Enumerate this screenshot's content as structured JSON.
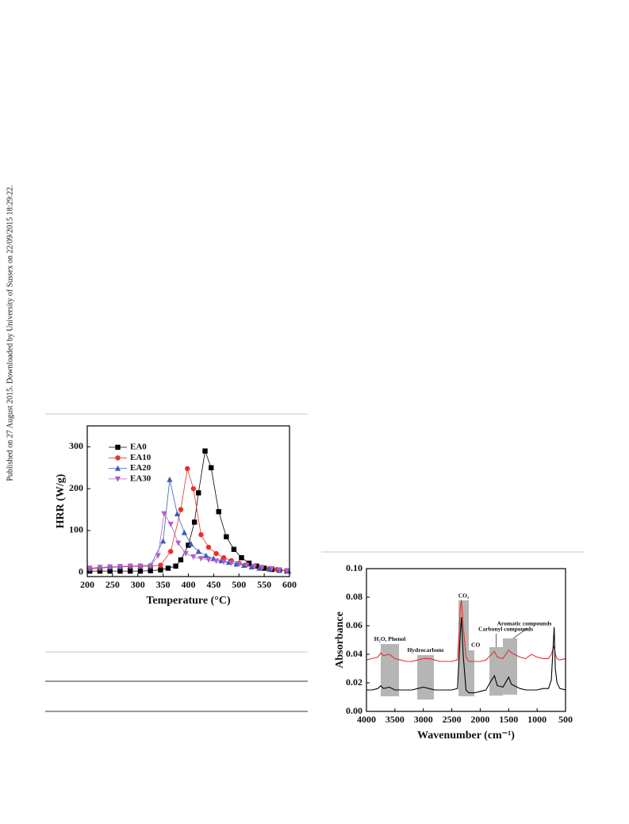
{
  "side_note": "Published on 27 August 2015. Downloaded by University of Sussex on 22/09/2015 18:29:22.",
  "chart_data": [
    {
      "type": "line",
      "x_label": "Temperature (°C)",
      "y_label": "HRR (W/g)",
      "xlim": [
        200,
        600
      ],
      "ylim": [
        -10,
        350
      ],
      "xticks": [
        200,
        250,
        300,
        350,
        400,
        450,
        500,
        550,
        600
      ],
      "yticks": [
        0,
        100,
        200,
        300
      ],
      "legend": "upper left",
      "series": [
        {
          "name": "EA0",
          "color": "#000000",
          "marker": "square",
          "x": [
            205,
            225,
            245,
            265,
            285,
            305,
            325,
            345,
            360,
            375,
            385,
            400,
            412,
            420,
            433,
            445,
            460,
            475,
            490,
            505,
            520,
            535,
            550,
            565,
            580,
            595
          ],
          "values": [
            3,
            3,
            3,
            3,
            3,
            3,
            4,
            6,
            10,
            15,
            30,
            65,
            120,
            190,
            290,
            250,
            145,
            85,
            55,
            35,
            22,
            15,
            10,
            7,
            5,
            3
          ]
        },
        {
          "name": "EA10",
          "color": "#e8302a",
          "marker": "circle",
          "x": [
            205,
            225,
            245,
            265,
            285,
            305,
            325,
            345,
            365,
            385,
            398,
            410,
            425,
            440,
            455,
            470,
            485,
            500,
            515,
            530,
            545,
            560,
            575,
            595
          ],
          "values": [
            8,
            10,
            12,
            13,
            14,
            15,
            15,
            17,
            50,
            150,
            248,
            200,
            90,
            60,
            45,
            35,
            28,
            22,
            18,
            15,
            12,
            9,
            7,
            4
          ]
        },
        {
          "name": "EA20",
          "color": "#3a5fb0",
          "marker": "triangle-up",
          "x": [
            205,
            225,
            245,
            265,
            285,
            305,
            325,
            350,
            363,
            378,
            392,
            405,
            420,
            435,
            450,
            465,
            480,
            495,
            510,
            525,
            540,
            560,
            580,
            598
          ],
          "values": [
            10,
            12,
            13,
            14,
            15,
            16,
            17,
            75,
            222,
            140,
            95,
            68,
            50,
            40,
            33,
            28,
            24,
            20,
            17,
            13,
            10,
            8,
            5,
            3
          ]
        },
        {
          "name": "EA30",
          "color": "#b05fc8",
          "marker": "triangle-down",
          "x": [
            205,
            225,
            245,
            265,
            285,
            305,
            325,
            340,
            352,
            365,
            380,
            395,
            410,
            425,
            440,
            455,
            470,
            485,
            500,
            515,
            530,
            545,
            565,
            580,
            595
          ],
          "values": [
            10,
            12,
            13,
            14,
            15,
            15,
            15,
            40,
            140,
            115,
            70,
            45,
            37,
            33,
            30,
            27,
            25,
            22,
            20,
            17,
            14,
            12,
            9,
            6,
            4
          ]
        }
      ]
    },
    {
      "type": "line",
      "x_label": "Wavenumber (cm⁻¹)",
      "y_label": "Absorbance",
      "xlim": [
        4000,
        500
      ],
      "ylim": [
        0,
        0.1
      ],
      "xticks": [
        4000,
        3500,
        3000,
        2500,
        2000,
        1500,
        1000,
        500
      ],
      "yticks": [
        {
          "value": 0,
          "label": "0.00"
        },
        {
          "value": 0.02,
          "label": "0.02"
        },
        {
          "value": 0.04,
          "label": "0.04"
        },
        {
          "value": 0.06,
          "label": "0.06"
        },
        {
          "value": 0.08,
          "label": "0.08"
        },
        {
          "value": 0.1,
          "label": "0.10"
        }
      ],
      "regions": [
        {
          "label": "H₂O, Phenol",
          "x": [
            3749,
            3428
          ],
          "y": [
            0.0106,
            0.0472
          ]
        },
        {
          "label": "Hydrocarbons",
          "x": [
            3107,
            2815
          ],
          "y": [
            0.0083,
            0.0394
          ]
        },
        {
          "label": "CO₂",
          "x": [
            2382,
            2201
          ],
          "y": [
            0.0106,
            0.0778
          ]
        },
        {
          "label": "CO",
          "x": [
            2201,
            2103
          ],
          "y": [
            0.0106,
            0.0428
          ]
        },
        {
          "label": "Carbonyl compounds",
          "x": [
            1838,
            1601
          ],
          "y": [
            0.011,
            0.045
          ]
        },
        {
          "label": "Aromatic compounds",
          "x": [
            1601,
            1350
          ],
          "y": [
            0.0117,
            0.0511
          ]
        }
      ],
      "x": [
        4000,
        3900,
        3800,
        3750,
        3700,
        3600,
        3500,
        3400,
        3300,
        3200,
        3100,
        3000,
        2900,
        2800,
        2700,
        2600,
        2500,
        2400,
        2350,
        2330,
        2300,
        2250,
        2200,
        2100,
        2000,
        1900,
        1800,
        1750,
        1700,
        1600,
        1500,
        1450,
        1400,
        1300,
        1200,
        1100,
        1000,
        900,
        800,
        750,
        700,
        680,
        650,
        600,
        500
      ],
      "series": [
        {
          "color": "#e8302a",
          "values": [
            0.036,
            0.037,
            0.038,
            0.041,
            0.039,
            0.04,
            0.037,
            0.036,
            0.035,
            0.035,
            0.036,
            0.037,
            0.037,
            0.036,
            0.035,
            0.035,
            0.035,
            0.036,
            0.072,
            0.078,
            0.06,
            0.038,
            0.035,
            0.035,
            0.035,
            0.036,
            0.04,
            0.042,
            0.038,
            0.037,
            0.043,
            0.041,
            0.04,
            0.038,
            0.037,
            0.04,
            0.038,
            0.037,
            0.037,
            0.04,
            0.046,
            0.04,
            0.037,
            0.036,
            0.037
          ]
        },
        {
          "color": "#000000",
          "values": [
            0.015,
            0.015,
            0.016,
            0.018,
            0.016,
            0.017,
            0.015,
            0.015,
            0.015,
            0.015,
            0.016,
            0.017,
            0.016,
            0.015,
            0.015,
            0.015,
            0.015,
            0.016,
            0.055,
            0.066,
            0.04,
            0.015,
            0.013,
            0.013,
            0.014,
            0.015,
            0.022,
            0.025,
            0.018,
            0.017,
            0.024,
            0.019,
            0.018,
            0.016,
            0.015,
            0.015,
            0.015,
            0.016,
            0.016,
            0.022,
            0.059,
            0.03,
            0.02,
            0.016,
            0.015
          ]
        }
      ]
    }
  ]
}
